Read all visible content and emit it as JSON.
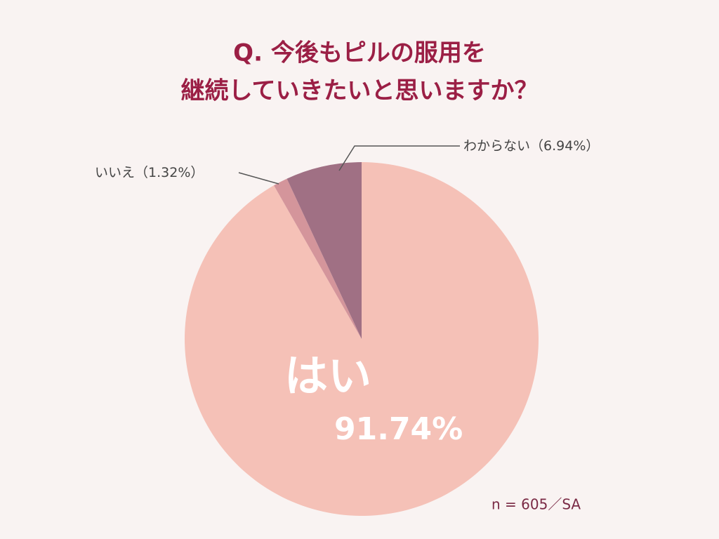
{
  "chart_data": {
    "type": "pie",
    "title": [
      "Q. 今後もピルの服用を",
      "継続していきたいと思いますか？"
    ],
    "categories": [
      "はい",
      "いいえ",
      "わからない"
    ],
    "values": [
      91.74,
      1.32,
      6.94
    ],
    "value_labels": [
      "91.74%",
      "（1.32%）",
      "（6.94%）"
    ],
    "colors": [
      "#f5c1b7",
      "#d4959b",
      "#a07084"
    ],
    "annotation": "n = 605／SA"
  }
}
